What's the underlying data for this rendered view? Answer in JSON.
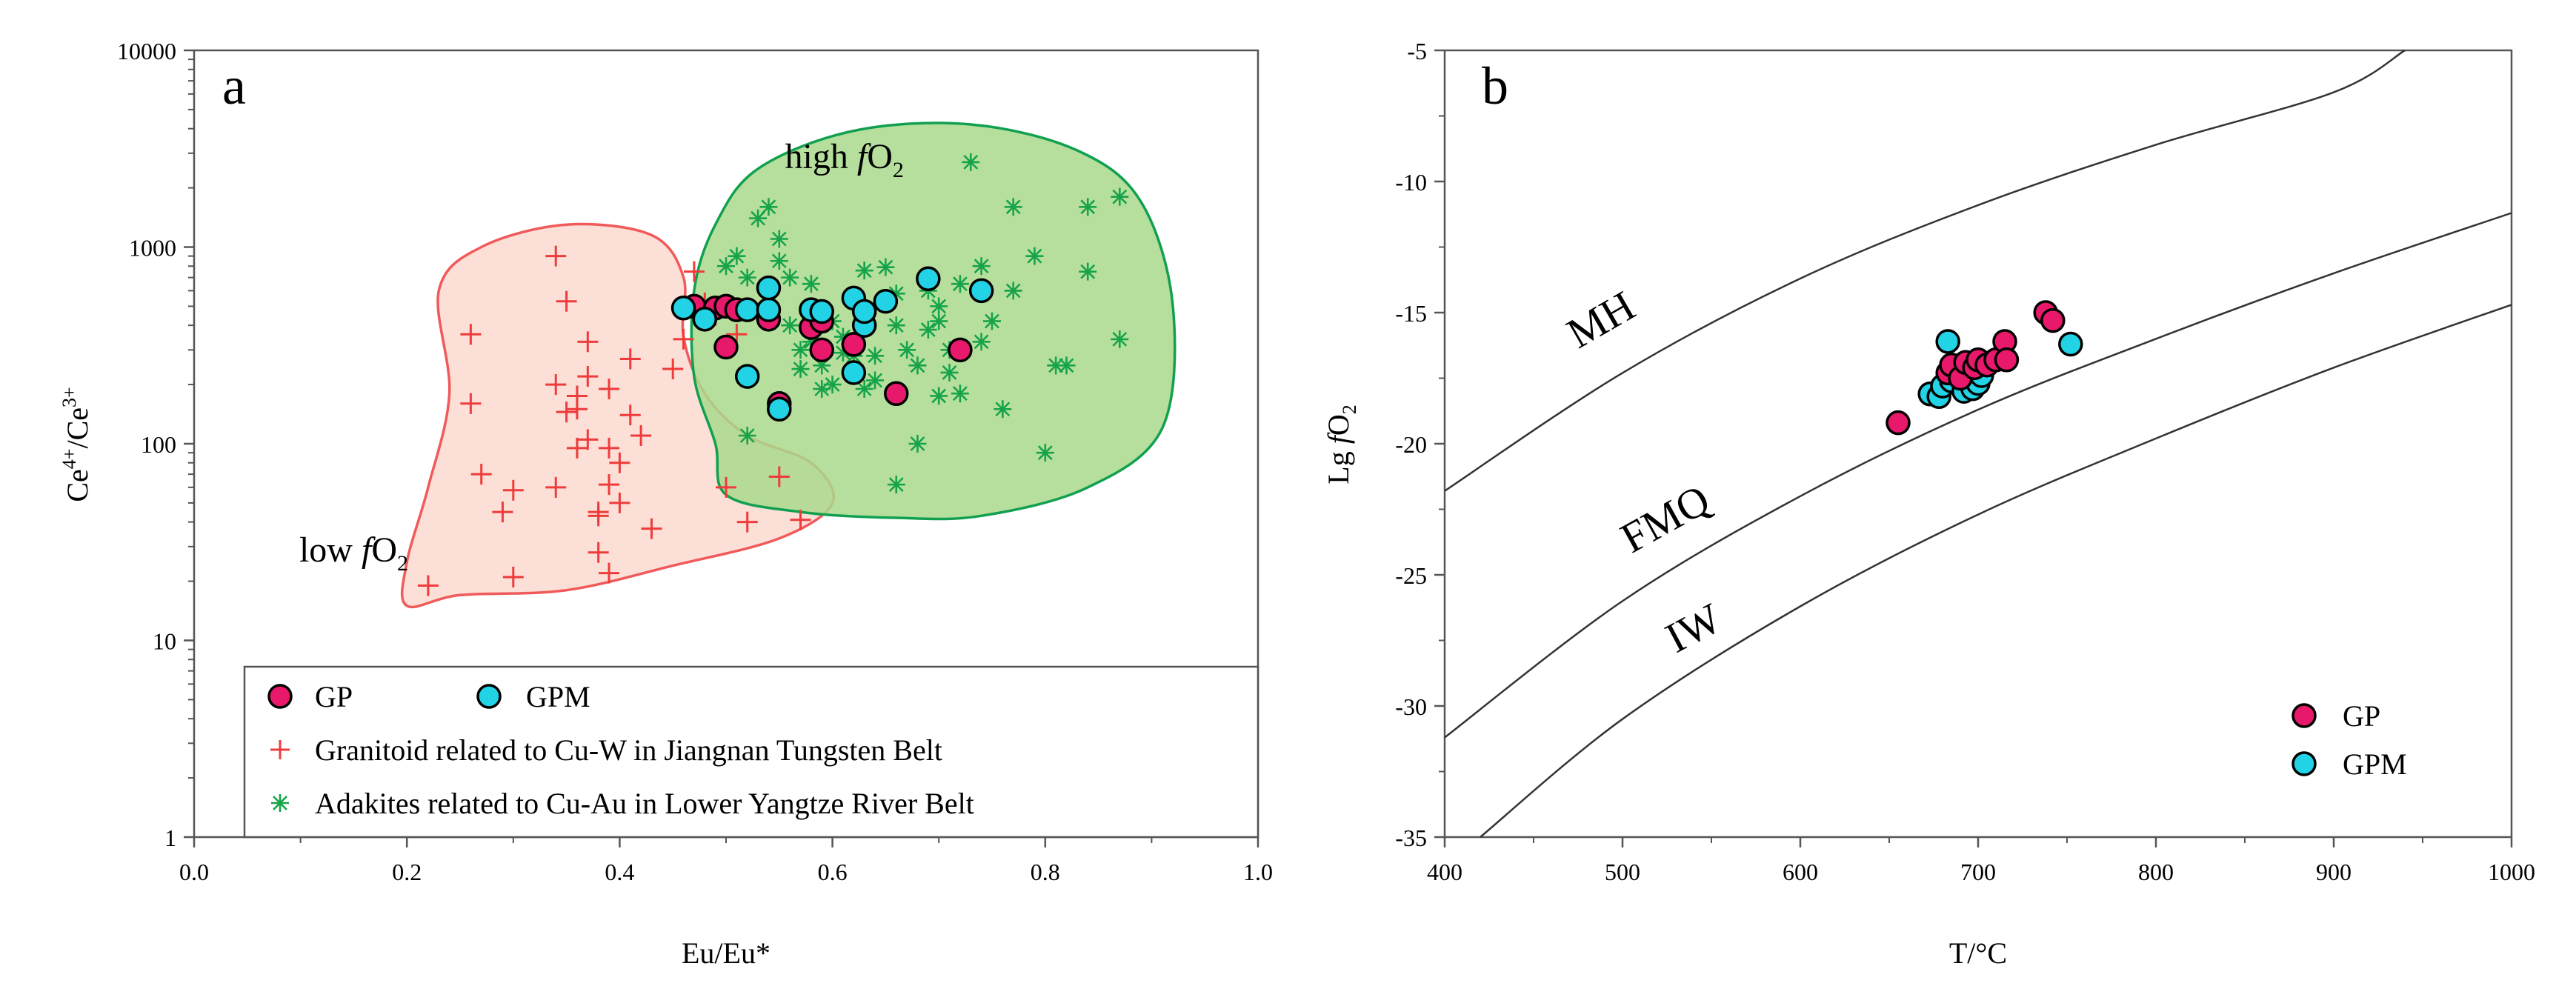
{
  "chart_data": [
    {
      "panel": "a",
      "type": "scatter",
      "title": "",
      "xlabel": "Eu/Eu*",
      "ylabel": "Ce4+/Ce3+",
      "ylabel_parts": {
        "base": "Ce",
        "sup1": "4+",
        "slash": "/Ce",
        "sup2": "3+"
      },
      "x_scale": "linear",
      "y_scale": "log",
      "xlim": [
        0.0,
        1.0
      ],
      "ylim": [
        1,
        10000
      ],
      "x_ticks": [
        "0.0",
        "0.2",
        "0.4",
        "0.6",
        "0.8",
        "1.0"
      ],
      "y_ticks": [
        "1",
        "10",
        "100",
        "1000",
        "10000"
      ],
      "region_labels": [
        {
          "id": "low",
          "prefix": "low ",
          "italic": "f",
          "main": "O",
          "sub": "2",
          "anchor_x": 0.055,
          "anchor_y": 30
        },
        {
          "id": "high",
          "prefix": "high ",
          "italic": "f",
          "main": "O",
          "sub": "2",
          "anchor_x": 0.82,
          "anchor_y": 3000
        }
      ],
      "regions": [
        {
          "name": "low fO2 field (Granitoid)",
          "color": "#f05a5a",
          "fill": "#fbd9d0",
          "points": [
            [
              0.2,
              15
            ],
            [
              0.25,
              17
            ],
            [
              0.35,
              18
            ],
            [
              0.45,
              24
            ],
            [
              0.55,
              33
            ],
            [
              0.6,
              50
            ],
            [
              0.58,
              80
            ],
            [
              0.52,
              110
            ],
            [
              0.48,
              180
            ],
            [
              0.46,
              350
            ],
            [
              0.46,
              700
            ],
            [
              0.43,
              1150
            ],
            [
              0.35,
              1300
            ],
            [
              0.27,
              1000
            ],
            [
              0.23,
              600
            ],
            [
              0.24,
              180
            ],
            [
              0.22,
              60
            ],
            [
              0.2,
              25
            ]
          ]
        },
        {
          "name": "high fO2 field (Adakites)",
          "color": "#12a050",
          "fill": "#a9d98c",
          "points": [
            [
              0.5,
              55
            ],
            [
              0.57,
              45
            ],
            [
              0.66,
              42
            ],
            [
              0.74,
              43
            ],
            [
              0.84,
              60
            ],
            [
              0.91,
              120
            ],
            [
              0.92,
              500
            ],
            [
              0.89,
              1700
            ],
            [
              0.83,
              3100
            ],
            [
              0.73,
              4200
            ],
            [
              0.62,
              3900
            ],
            [
              0.53,
              2500
            ],
            [
              0.49,
              1300
            ],
            [
              0.47,
              600
            ],
            [
              0.47,
              220
            ],
            [
              0.49,
              100
            ]
          ]
        }
      ],
      "series": [
        {
          "name": "Granitoid related to Cu-W in Jiangnan Tungsten Belt",
          "marker": "plus",
          "color": "#ef3b3b",
          "points": [
            [
              0.22,
              19
            ],
            [
              0.26,
              160
            ],
            [
              0.26,
              360
            ],
            [
              0.27,
              70
            ],
            [
              0.29,
              45
            ],
            [
              0.3,
              58
            ],
            [
              0.3,
              21
            ],
            [
              0.34,
              60
            ],
            [
              0.34,
              900
            ],
            [
              0.34,
              200
            ],
            [
              0.35,
              530
            ],
            [
              0.35,
              145
            ],
            [
              0.36,
              175
            ],
            [
              0.36,
              95
            ],
            [
              0.36,
              150
            ],
            [
              0.37,
              330
            ],
            [
              0.37,
              220
            ],
            [
              0.37,
              105
            ],
            [
              0.38,
              28
            ],
            [
              0.38,
              43
            ],
            [
              0.38,
              45
            ],
            [
              0.39,
              190
            ],
            [
              0.39,
              95
            ],
            [
              0.39,
              62
            ],
            [
              0.39,
              22
            ],
            [
              0.4,
              80
            ],
            [
              0.4,
              50
            ],
            [
              0.41,
              270
            ],
            [
              0.41,
              140
            ],
            [
              0.42,
              110
            ],
            [
              0.43,
              37
            ],
            [
              0.45,
              240
            ],
            [
              0.46,
              340
            ],
            [
              0.47,
              460
            ],
            [
              0.47,
              750
            ],
            [
              0.49,
              450
            ],
            [
              0.5,
              60
            ],
            [
              0.51,
              360
            ],
            [
              0.52,
              40
            ],
            [
              0.55,
              68
            ],
            [
              0.57,
              41
            ],
            [
              0.48,
              520
            ]
          ]
        },
        {
          "name": "Adakites related to Cu-Au in Lower Yangtze River Belt",
          "marker": "asterisk",
          "color": "#16a34a",
          "points": [
            [
              0.5,
              800
            ],
            [
              0.51,
              900
            ],
            [
              0.52,
              700
            ],
            [
              0.52,
              110
            ],
            [
              0.53,
              1400
            ],
            [
              0.54,
              1600
            ],
            [
              0.55,
              1100
            ],
            [
              0.55,
              850
            ],
            [
              0.56,
              700
            ],
            [
              0.56,
              400
            ],
            [
              0.57,
              300
            ],
            [
              0.57,
              240
            ],
            [
              0.58,
              650
            ],
            [
              0.59,
              250
            ],
            [
              0.59,
              190
            ],
            [
              0.6,
              200
            ],
            [
              0.6,
              420
            ],
            [
              0.61,
              350
            ],
            [
              0.62,
              560
            ],
            [
              0.62,
              280
            ],
            [
              0.63,
              760
            ],
            [
              0.63,
              190
            ],
            [
              0.64,
              210
            ],
            [
              0.64,
              280
            ],
            [
              0.65,
              790
            ],
            [
              0.66,
              580
            ],
            [
              0.66,
              400
            ],
            [
              0.67,
              300
            ],
            [
              0.68,
              250
            ],
            [
              0.69,
              600
            ],
            [
              0.69,
              380
            ],
            [
              0.7,
              500
            ],
            [
              0.7,
              420
            ],
            [
              0.71,
              300
            ],
            [
              0.71,
              230
            ],
            [
              0.72,
              650
            ],
            [
              0.72,
              180
            ],
            [
              0.73,
              2700
            ],
            [
              0.74,
              800
            ],
            [
              0.74,
              330
            ],
            [
              0.75,
              420
            ],
            [
              0.76,
              150
            ],
            [
              0.77,
              1600
            ],
            [
              0.77,
              600
            ],
            [
              0.79,
              900
            ],
            [
              0.8,
              90
            ],
            [
              0.81,
              250
            ],
            [
              0.82,
              250
            ],
            [
              0.84,
              1600
            ],
            [
              0.84,
              750
            ],
            [
              0.87,
              1800
            ],
            [
              0.87,
              340
            ],
            [
              0.68,
              100
            ],
            [
              0.66,
              62
            ],
            [
              0.7,
              175
            ],
            [
              0.61,
              290
            ],
            [
              0.58,
              330
            ],
            [
              0.63,
              450
            ]
          ]
        },
        {
          "name": "GP",
          "marker": "circle",
          "color": "#e8196a",
          "points": [
            [
              0.47,
              500
            ],
            [
              0.49,
              490
            ],
            [
              0.5,
              500
            ],
            [
              0.5,
              310
            ],
            [
              0.51,
              480
            ],
            [
              0.54,
              430
            ],
            [
              0.55,
              160
            ],
            [
              0.58,
              390
            ],
            [
              0.59,
              300
            ],
            [
              0.59,
              420
            ],
            [
              0.62,
              320
            ],
            [
              0.66,
              180
            ],
            [
              0.72,
              300
            ]
          ]
        },
        {
          "name": "GPM",
          "marker": "circle",
          "color": "#22d3e6",
          "points": [
            [
              0.46,
              490
            ],
            [
              0.48,
              430
            ],
            [
              0.52,
              480
            ],
            [
              0.52,
              220
            ],
            [
              0.54,
              480
            ],
            [
              0.54,
              620
            ],
            [
              0.55,
              150
            ],
            [
              0.58,
              480
            ],
            [
              0.59,
              470
            ],
            [
              0.62,
              550
            ],
            [
              0.62,
              230
            ],
            [
              0.63,
              400
            ],
            [
              0.63,
              470
            ],
            [
              0.65,
              530
            ],
            [
              0.69,
              690
            ],
            [
              0.74,
              600
            ]
          ]
        }
      ],
      "legend": {
        "placement": "bottom",
        "items": [
          {
            "label": "GP",
            "marker": "circle",
            "color": "#e8196a"
          },
          {
            "label": "GPM",
            "marker": "circle",
            "color": "#22d3e6"
          },
          {
            "label": "Granitoid related to Cu-W in Jiangnan Tungsten Belt",
            "marker": "plus",
            "color": "#ef3b3b"
          },
          {
            "label": "Adakites related to Cu-Au in Lower Yangtze River Belt",
            "marker": "asterisk",
            "color": "#16a34a"
          }
        ]
      }
    },
    {
      "panel": "b",
      "type": "scatter",
      "title": "",
      "xlabel": "T/°C",
      "ylabel": "Lg fO2",
      "ylabel_parts": {
        "prefix": "Lg ",
        "italic": "f",
        "main": "O",
        "sub": "2"
      },
      "x_scale": "linear",
      "y_scale": "linear",
      "xlim": [
        400,
        1000
      ],
      "ylim": [
        -35,
        -5
      ],
      "x_ticks": [
        "400",
        "500",
        "600",
        "700",
        "800",
        "900",
        "1000"
      ],
      "y_ticks": [
        "-5",
        "-10",
        "-15",
        "-20",
        "-25",
        "-30",
        "-35"
      ],
      "curves": [
        {
          "name": "MH",
          "points": [
            [
              400,
              -21.8
            ],
            [
              500,
              -17.3
            ],
            [
              600,
              -13.7
            ],
            [
              700,
              -10.9
            ],
            [
              800,
              -8.6
            ],
            [
              900,
              -6.6
            ],
            [
              940,
              -5.0
            ]
          ]
        },
        {
          "name": "FMQ",
          "points": [
            [
              400,
              -31.2
            ],
            [
              500,
              -26.0
            ],
            [
              600,
              -22.0
            ],
            [
              700,
              -18.7
            ],
            [
              800,
              -16.0
            ],
            [
              900,
              -13.5
            ],
            [
              1000,
              -11.2
            ]
          ]
        },
        {
          "name": "IW",
          "points": [
            [
              420,
              -35.0
            ],
            [
              500,
              -30.5
            ],
            [
              600,
              -26.2
            ],
            [
              700,
              -22.7
            ],
            [
              800,
              -19.8
            ],
            [
              900,
              -17.1
            ],
            [
              1000,
              -14.7
            ]
          ]
        }
      ],
      "curve_labels": [
        {
          "text": "MH",
          "x": 475,
          "y": -16.4,
          "angle": -30
        },
        {
          "text": "FMQ",
          "x": 505,
          "y": -24.2,
          "angle": -29
        },
        {
          "text": "IW",
          "x": 530,
          "y": -28.0,
          "angle": -28
        }
      ],
      "series": [
        {
          "name": "GPM",
          "marker": "circle",
          "color": "#22d3e6",
          "points": [
            [
              673,
              -18.1
            ],
            [
              678,
              -18.2
            ],
            [
              680,
              -17.8
            ],
            [
              683,
              -16.1
            ],
            [
              685,
              -17.6
            ],
            [
              688,
              -17.2
            ],
            [
              692,
              -18.0
            ],
            [
              695,
              -17.5
            ],
            [
              697,
              -17.9
            ],
            [
              700,
              -17.7
            ],
            [
              702,
              -17.4
            ],
            [
              752,
              -16.2
            ]
          ]
        },
        {
          "name": "GP",
          "marker": "circle",
          "color": "#e8196a",
          "points": [
            [
              655,
              -19.2
            ],
            [
              683,
              -17.3
            ],
            [
              685,
              -17.0
            ],
            [
              690,
              -17.5
            ],
            [
              693,
              -16.9
            ],
            [
              698,
              -17.1
            ],
            [
              700,
              -16.8
            ],
            [
              705,
              -17.0
            ],
            [
              710,
              -16.8
            ],
            [
              715,
              -16.1
            ],
            [
              716,
              -16.8
            ],
            [
              738,
              -15.0
            ],
            [
              742,
              -15.3
            ]
          ]
        }
      ],
      "legend": {
        "placement": "bottom-right",
        "items": [
          {
            "label": "GP",
            "marker": "circle",
            "color": "#e8196a"
          },
          {
            "label": "GPM",
            "marker": "circle",
            "color": "#22d3e6"
          }
        ]
      }
    }
  ]
}
